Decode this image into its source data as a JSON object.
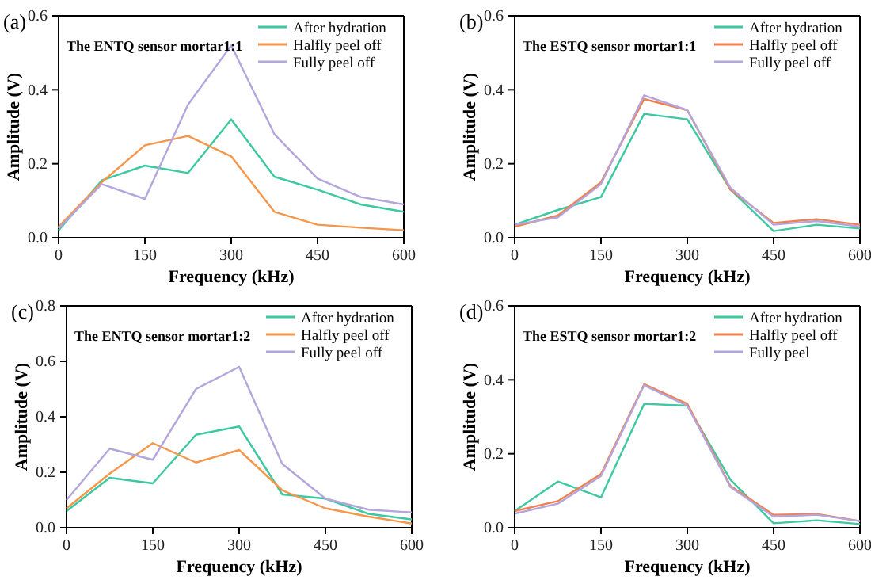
{
  "chart_data": [
    {
      "type": "line",
      "title": "The ENTQ sensor mortar1:1",
      "annotations": [
        "(a)"
      ],
      "xlabel": "Frequency (kHz)",
      "ylabel": "Amplitude (V)",
      "x": [
        0,
        75,
        150,
        225,
        300,
        375,
        450,
        525,
        600
      ],
      "xlim": [
        0,
        600
      ],
      "xticks": [
        0,
        150,
        300,
        450,
        600
      ],
      "ylim": [
        0,
        0.6
      ],
      "yticks": [
        {
          "value": 0,
          "label": "0.0"
        },
        {
          "value": 0.2,
          "label": "0.2"
        },
        {
          "value": 0.4,
          "label": "0.4"
        },
        {
          "value": 0.6,
          "label": "0.6"
        }
      ],
      "legend": "top right",
      "grid": false,
      "series": [
        {
          "name": "After hydration",
          "color": "#3cc8a0",
          "values": [
            0.02,
            0.155,
            0.195,
            0.175,
            0.32,
            0.165,
            0.13,
            0.09,
            0.07
          ]
        },
        {
          "name": "Halfly peel off",
          "color": "#f5964b",
          "values": [
            0.03,
            0.15,
            0.25,
            0.275,
            0.22,
            0.07,
            0.035,
            0.027,
            0.02
          ]
        },
        {
          "name": "Fully peel off",
          "color": "#b4a5dc",
          "values": [
            0.025,
            0.145,
            0.105,
            0.36,
            0.52,
            0.28,
            0.16,
            0.11,
            0.09
          ]
        }
      ]
    },
    {
      "type": "line",
      "title": "The ESTQ sensor mortar1:1",
      "annotations": [
        "(b)"
      ],
      "xlabel": "Frequency (kHz)",
      "ylabel": "Amplitude (V)",
      "x": [
        0,
        75,
        150,
        225,
        300,
        375,
        450,
        525,
        600
      ],
      "xlim": [
        0,
        600
      ],
      "xticks": [
        0,
        150,
        300,
        450,
        600
      ],
      "ylim": [
        0,
        0.6
      ],
      "yticks": [
        {
          "value": 0,
          "label": "0.0"
        },
        {
          "value": 0.2,
          "label": "0.2"
        },
        {
          "value": 0.4,
          "label": "0.4"
        },
        {
          "value": 0.6,
          "label": "0.6"
        }
      ],
      "legend": "top right",
      "grid": false,
      "series": [
        {
          "name": "After hydration",
          "color": "#3cc8a0",
          "values": [
            0.035,
            0.075,
            0.11,
            0.335,
            0.32,
            0.13,
            0.018,
            0.035,
            0.025
          ]
        },
        {
          "name": "Halfly peel off",
          "color": "#f08050",
          "values": [
            0.03,
            0.06,
            0.15,
            0.375,
            0.345,
            0.13,
            0.04,
            0.05,
            0.035
          ]
        },
        {
          "name": "Fully peel off",
          "color": "#b4a5dc",
          "values": [
            0.035,
            0.055,
            0.145,
            0.385,
            0.345,
            0.135,
            0.035,
            0.045,
            0.03
          ]
        }
      ]
    },
    {
      "type": "line",
      "title": "The ENTQ sensor mortar1:2",
      "annotations": [
        "(c)"
      ],
      "xlabel": "Frequency (kHz)",
      "ylabel": "Amplitude (V)",
      "x": [
        0,
        75,
        150,
        225,
        300,
        375,
        450,
        525,
        600
      ],
      "xlim": [
        0,
        600
      ],
      "xticks": [
        0,
        150,
        300,
        450,
        600
      ],
      "ylim": [
        0,
        0.8
      ],
      "yticks": [
        {
          "value": 0,
          "label": "0.0"
        },
        {
          "value": 0.2,
          "label": "0.2"
        },
        {
          "value": 0.4,
          "label": "0.4"
        },
        {
          "value": 0.6,
          "label": "0.6"
        },
        {
          "value": 0.8,
          "label": "0.8"
        }
      ],
      "legend": "top right",
      "grid": false,
      "series": [
        {
          "name": "After hydration",
          "color": "#3cc8a0",
          "values": [
            0.06,
            0.18,
            0.16,
            0.335,
            0.365,
            0.12,
            0.105,
            0.05,
            0.03
          ]
        },
        {
          "name": "Halfly peel off",
          "color": "#f5964b",
          "values": [
            0.07,
            0.195,
            0.305,
            0.235,
            0.28,
            0.135,
            0.07,
            0.04,
            0.015
          ]
        },
        {
          "name": "Fully peel off",
          "color": "#b4a5dc",
          "values": [
            0.1,
            0.285,
            0.245,
            0.5,
            0.58,
            0.23,
            0.105,
            0.065,
            0.055
          ]
        }
      ]
    },
    {
      "type": "line",
      "title": "The ESTQ sensor mortar1:2",
      "annotations": [
        "(d)"
      ],
      "xlabel": "Frequency (kHz)",
      "ylabel": "Amplitude (V)",
      "x": [
        0,
        75,
        150,
        225,
        300,
        375,
        450,
        525,
        600
      ],
      "xlim": [
        0,
        600
      ],
      "xticks": [
        0,
        150,
        300,
        450,
        600
      ],
      "ylim": [
        0,
        0.6
      ],
      "yticks": [
        {
          "value": 0,
          "label": "0.0"
        },
        {
          "value": 0.2,
          "label": "0.2"
        },
        {
          "value": 0.4,
          "label": "0.4"
        },
        {
          "value": 0.6,
          "label": "0.6"
        }
      ],
      "legend": "top right",
      "grid": false,
      "series": [
        {
          "name": "After hydration",
          "color": "#3cc8a0",
          "values": [
            0.045,
            0.125,
            0.082,
            0.335,
            0.33,
            0.13,
            0.012,
            0.02,
            0.01
          ]
        },
        {
          "name": "Halfly peel off",
          "color": "#f08050",
          "values": [
            0.045,
            0.072,
            0.145,
            0.388,
            0.335,
            0.113,
            0.035,
            0.037,
            0.018
          ]
        },
        {
          "name": "Fully peel",
          "color": "#b4a5dc",
          "values": [
            0.038,
            0.065,
            0.14,
            0.385,
            0.33,
            0.11,
            0.03,
            0.035,
            0.018
          ]
        }
      ]
    }
  ]
}
